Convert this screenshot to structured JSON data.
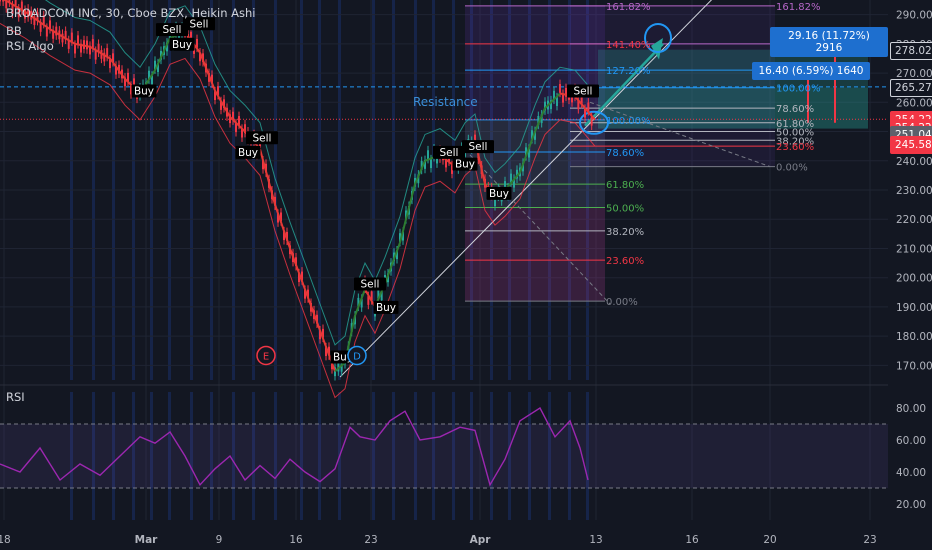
{
  "header": {
    "title": "BROADCOM INC, 30, Cboe BZX, Heikin Ashi",
    "indicator_bb": "BB",
    "indicator_rsi_algo": "RSI Algo"
  },
  "rsi_panel": {
    "title": "RSI"
  },
  "annotations": {
    "resistance": "Resistance",
    "measure_top": "29.16 (11.72%) 2916",
    "measure_mid": "16.40 (6.59%) 1640"
  },
  "price_labels": [
    {
      "value": "278.02",
      "price": 278.02,
      "bg": "#131722",
      "fg": "#d1d4dc",
      "border": "#d1d4dc"
    },
    {
      "value": "265.27",
      "price": 265.27,
      "bg": "#131722",
      "fg": "#d1d4dc",
      "border": "#d1d4dc"
    },
    {
      "value": "254.22",
      "price": 254.22,
      "bg": "#f23645",
      "fg": "#ffffff",
      "border": "#f23645"
    },
    {
      "value": "254.22",
      "price": 251.6,
      "bg": "#f23645",
      "fg": "#ffffff",
      "border": "#f23645"
    },
    {
      "value": "251.04",
      "price": 249.0,
      "bg": "#5d606b",
      "fg": "#ffffff",
      "border": "#5d606b"
    },
    {
      "value": "245.58",
      "price": 245.58,
      "bg": "#f23645",
      "fg": "#ffffff",
      "border": "#f23645"
    }
  ],
  "chart_data": {
    "type": "line",
    "title": "BROADCOM INC, 30, Cboe BZX, Heikin Ashi",
    "x_tick_labels": [
      "18",
      "Mar",
      "9",
      "16",
      "23",
      "Apr",
      "13",
      "16",
      "20",
      "23"
    ],
    "y_ticks": [
      170,
      180,
      190,
      200,
      210,
      220,
      230,
      240,
      250,
      260,
      270,
      280,
      290
    ],
    "ylim": [
      165,
      295
    ],
    "rsi_ticks": [
      20,
      40,
      60,
      80
    ],
    "rsi_ylim": [
      10,
      90
    ],
    "rsi_band": [
      30,
      70
    ],
    "price_series": {
      "name": "BROADCOM INC",
      "points": [
        [
          0,
          296
        ],
        [
          25,
          291
        ],
        [
          50,
          285
        ],
        [
          75,
          280
        ],
        [
          90,
          279
        ],
        [
          110,
          275
        ],
        [
          125,
          268
        ],
        [
          140,
          263
        ],
        [
          155,
          271
        ],
        [
          170,
          282
        ],
        [
          185,
          284
        ],
        [
          200,
          277
        ],
        [
          215,
          264
        ],
        [
          230,
          255
        ],
        [
          245,
          250
        ],
        [
          260,
          244
        ],
        [
          275,
          225
        ],
        [
          290,
          210
        ],
        [
          305,
          196
        ],
        [
          320,
          182
        ],
        [
          335,
          168
        ],
        [
          345,
          171
        ],
        [
          355,
          187
        ],
        [
          365,
          196
        ],
        [
          375,
          190
        ],
        [
          385,
          198
        ],
        [
          400,
          212
        ],
        [
          415,
          232
        ],
        [
          425,
          240
        ],
        [
          440,
          242
        ],
        [
          455,
          238
        ],
        [
          465,
          244
        ],
        [
          475,
          247
        ],
        [
          485,
          232
        ],
        [
          495,
          227
        ],
        [
          505,
          230
        ],
        [
          520,
          236
        ],
        [
          535,
          250
        ],
        [
          545,
          258
        ],
        [
          560,
          263
        ],
        [
          575,
          262
        ],
        [
          585,
          258
        ],
        [
          595,
          254
        ]
      ]
    },
    "rsi_series": {
      "name": "RSI",
      "points": [
        [
          0,
          45
        ],
        [
          20,
          40
        ],
        [
          40,
          55
        ],
        [
          60,
          35
        ],
        [
          80,
          45
        ],
        [
          100,
          38
        ],
        [
          120,
          50
        ],
        [
          140,
          62
        ],
        [
          155,
          58
        ],
        [
          170,
          65
        ],
        [
          185,
          50
        ],
        [
          200,
          32
        ],
        [
          215,
          42
        ],
        [
          230,
          50
        ],
        [
          245,
          35
        ],
        [
          260,
          44
        ],
        [
          275,
          36
        ],
        [
          290,
          48
        ],
        [
          305,
          40
        ],
        [
          320,
          34
        ],
        [
          335,
          42
        ],
        [
          350,
          68
        ],
        [
          360,
          62
        ],
        [
          375,
          60
        ],
        [
          390,
          72
        ],
        [
          405,
          78
        ],
        [
          420,
          60
        ],
        [
          440,
          62
        ],
        [
          460,
          68
        ],
        [
          475,
          66
        ],
        [
          490,
          32
        ],
        [
          505,
          48
        ],
        [
          520,
          72
        ],
        [
          540,
          80
        ],
        [
          555,
          62
        ],
        [
          570,
          72
        ],
        [
          580,
          55
        ],
        [
          588,
          35
        ]
      ]
    },
    "signals": [
      {
        "label": "Sell",
        "x": 172,
        "price": 284,
        "type": "sell"
      },
      {
        "label": "Sell",
        "x": 199,
        "price": 286,
        "type": "sell"
      },
      {
        "label": "Buy",
        "x": 182,
        "price": 279,
        "type": "buy"
      },
      {
        "label": "Buy",
        "x": 144,
        "price": 263,
        "type": "buy"
      },
      {
        "label": "Sell",
        "x": 262,
        "price": 247,
        "type": "sell"
      },
      {
        "label": "Buy",
        "x": 248,
        "price": 242,
        "type": "buy"
      },
      {
        "label": "Sell",
        "x": 370,
        "price": 197,
        "type": "sell"
      },
      {
        "label": "Buy",
        "x": 386,
        "price": 189,
        "type": "buy"
      },
      {
        "label": "Buy",
        "x": 343,
        "price": 172,
        "type": "buy"
      },
      {
        "label": "Sell",
        "x": 449,
        "price": 242,
        "type": "sell"
      },
      {
        "label": "Sell",
        "x": 478,
        "price": 244,
        "type": "sell"
      },
      {
        "label": "Buy",
        "x": 465,
        "price": 238,
        "type": "buy"
      },
      {
        "label": "Buy",
        "x": 499,
        "price": 228,
        "type": "buy"
      },
      {
        "label": "Sell",
        "x": 583,
        "price": 263,
        "type": "sell"
      }
    ],
    "fib_right": [
      {
        "label": "161.82%",
        "price": 293,
        "color": "#b667c8"
      },
      {
        "label": "141.40%",
        "price": 280,
        "color": "#b667c8"
      },
      {
        "label": "127.20%",
        "price": 271,
        "color": "#2196f3"
      },
      {
        "label": "100.00%",
        "price": 265,
        "color": "#2196f3"
      },
      {
        "label": "78.60%",
        "price": 258,
        "color": "#b2b5be"
      },
      {
        "label": "61.80%",
        "price": 253,
        "color": "#b2b5be"
      },
      {
        "label": "50.00%",
        "price": 250,
        "color": "#b2b5be"
      },
      {
        "label": "38.20%",
        "price": 247,
        "color": "#b2b5be"
      },
      {
        "label": "23.60%",
        "price": 245,
        "color": "#f23645"
      },
      {
        "label": "0.00%",
        "price": 238,
        "color": "#787b86"
      }
    ],
    "fib_left": [
      {
        "label": "161.82%",
        "price": 293,
        "color": "#b667c8"
      },
      {
        "label": "141.40%",
        "price": 280,
        "color": "#f23645"
      },
      {
        "label": "127.20%",
        "price": 271,
        "color": "#2196f3"
      },
      {
        "label": "100.00%",
        "price": 254,
        "color": "#2196f3"
      },
      {
        "label": "78.60%",
        "price": 243,
        "color": "#2196f3"
      },
      {
        "label": "61.80%",
        "price": 232,
        "color": "#4caf50"
      },
      {
        "label": "50.00%",
        "price": 224,
        "color": "#4caf50"
      },
      {
        "label": "38.20%",
        "price": 216,
        "color": "#b2b5be"
      },
      {
        "label": "23.60%",
        "price": 206,
        "color": "#f23645"
      },
      {
        "label": "0.00%",
        "price": 192,
        "color": "#787b86"
      }
    ],
    "markers": [
      {
        "label": "E",
        "x": 266,
        "price": 172,
        "color": "#f23645"
      },
      {
        "label": "D",
        "x": 357,
        "price": 172,
        "color": "#2196f3"
      }
    ]
  }
}
